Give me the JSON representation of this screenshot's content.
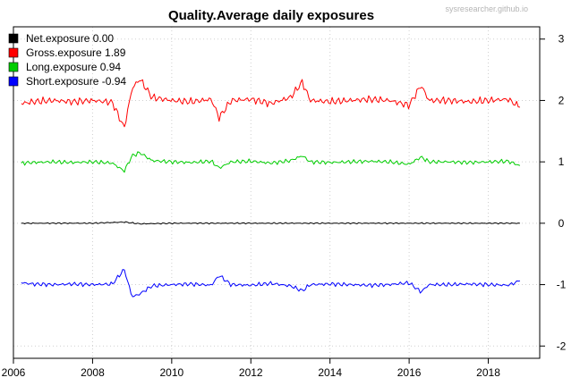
{
  "chart_data": {
    "type": "line",
    "title": "Quality.Average daily exposures",
    "watermark": "sysresearcher.github.io",
    "xlabel": "",
    "ylabel": "",
    "x_ticks": [
      "2006",
      "2008",
      "2010",
      "2012",
      "2014",
      "2016",
      "2018"
    ],
    "y_ticks": [
      "3",
      "2",
      "1",
      "0",
      "-1",
      "-2"
    ],
    "xlim": [
      2006.0,
      2019.3
    ],
    "ylim": [
      -2.2,
      3.2
    ],
    "y_axis_side": "right",
    "grid": true,
    "legend_position": "top-left",
    "x_range": [
      2006.2,
      2018.8
    ],
    "series": [
      {
        "name": "Net.exposure",
        "legend_label": "Net.exposure  0.00",
        "color": "#000000",
        "x": [
          2006.2,
          2007.0,
          2008.0,
          2008.8,
          2009.2,
          2010.0,
          2011.0,
          2012.0,
          2013.0,
          2014.0,
          2015.0,
          2016.0,
          2017.0,
          2018.0,
          2018.8
        ],
        "values": [
          0.0,
          0.0,
          0.0,
          0.02,
          -0.01,
          0.0,
          0.0,
          0.0,
          0.0,
          0.0,
          0.0,
          0.0,
          0.0,
          0.0,
          0.0
        ]
      },
      {
        "name": "Gross.exposure",
        "legend_label": "Gross.exposure  1.89",
        "color": "#ff0000",
        "x": [
          2006.2,
          2006.5,
          2007.0,
          2007.5,
          2008.0,
          2008.5,
          2008.8,
          2009.0,
          2009.2,
          2009.5,
          2010.0,
          2010.5,
          2011.0,
          2011.2,
          2011.5,
          2012.0,
          2012.5,
          2013.0,
          2013.3,
          2013.5,
          2014.0,
          2014.5,
          2015.0,
          2015.5,
          2016.0,
          2016.3,
          2016.5,
          2017.0,
          2017.5,
          2018.0,
          2018.5,
          2018.8
        ],
        "values": [
          1.95,
          1.98,
          2.0,
          1.98,
          2.0,
          1.97,
          1.55,
          2.2,
          2.35,
          2.05,
          2.0,
          1.98,
          2.02,
          1.72,
          2.0,
          2.02,
          1.95,
          2.05,
          2.3,
          2.0,
          1.98,
          2.0,
          2.02,
          2.0,
          1.92,
          2.25,
          2.0,
          2.0,
          1.98,
          2.0,
          2.02,
          1.89
        ]
      },
      {
        "name": "Long.exposure",
        "legend_label": "Long.exposure  0.94",
        "color": "#00cd00",
        "x": [
          2006.2,
          2006.5,
          2007.0,
          2007.5,
          2008.0,
          2008.5,
          2008.8,
          2009.0,
          2009.2,
          2009.5,
          2010.0,
          2010.5,
          2011.0,
          2011.2,
          2011.5,
          2012.0,
          2012.5,
          2013.0,
          2013.3,
          2013.5,
          2014.0,
          2014.5,
          2015.0,
          2015.5,
          2016.0,
          2016.3,
          2016.5,
          2017.0,
          2017.5,
          2018.0,
          2018.5,
          2018.8
        ],
        "values": [
          0.98,
          0.99,
          1.0,
          0.99,
          1.0,
          0.98,
          0.85,
          1.1,
          1.15,
          1.02,
          1.0,
          0.99,
          1.01,
          0.9,
          1.0,
          1.01,
          0.98,
          1.02,
          1.1,
          1.0,
          0.99,
          1.0,
          1.01,
          1.0,
          0.96,
          1.08,
          1.0,
          1.0,
          0.99,
          1.0,
          1.01,
          0.94
        ]
      },
      {
        "name": "Short.exposure",
        "legend_label": "Short.exposure -0.94",
        "color": "#0000ff",
        "x": [
          2006.2,
          2006.5,
          2007.0,
          2007.5,
          2008.0,
          2008.5,
          2008.8,
          2009.0,
          2009.2,
          2009.5,
          2010.0,
          2010.5,
          2011.0,
          2011.2,
          2011.5,
          2012.0,
          2012.5,
          2013.0,
          2013.3,
          2013.5,
          2014.0,
          2014.5,
          2015.0,
          2015.5,
          2016.0,
          2016.3,
          2016.5,
          2017.0,
          2017.5,
          2018.0,
          2018.5,
          2018.8
        ],
        "values": [
          -0.97,
          -0.99,
          -1.0,
          -0.99,
          -1.0,
          -0.99,
          -0.75,
          -1.2,
          -1.15,
          -1.02,
          -1.0,
          -0.99,
          -1.01,
          -0.85,
          -1.0,
          -1.01,
          -0.98,
          -1.02,
          -1.1,
          -1.0,
          -0.99,
          -1.0,
          -1.01,
          -1.0,
          -0.97,
          -1.12,
          -1.0,
          -1.0,
          -0.99,
          -1.0,
          -1.01,
          -0.94
        ]
      }
    ]
  }
}
